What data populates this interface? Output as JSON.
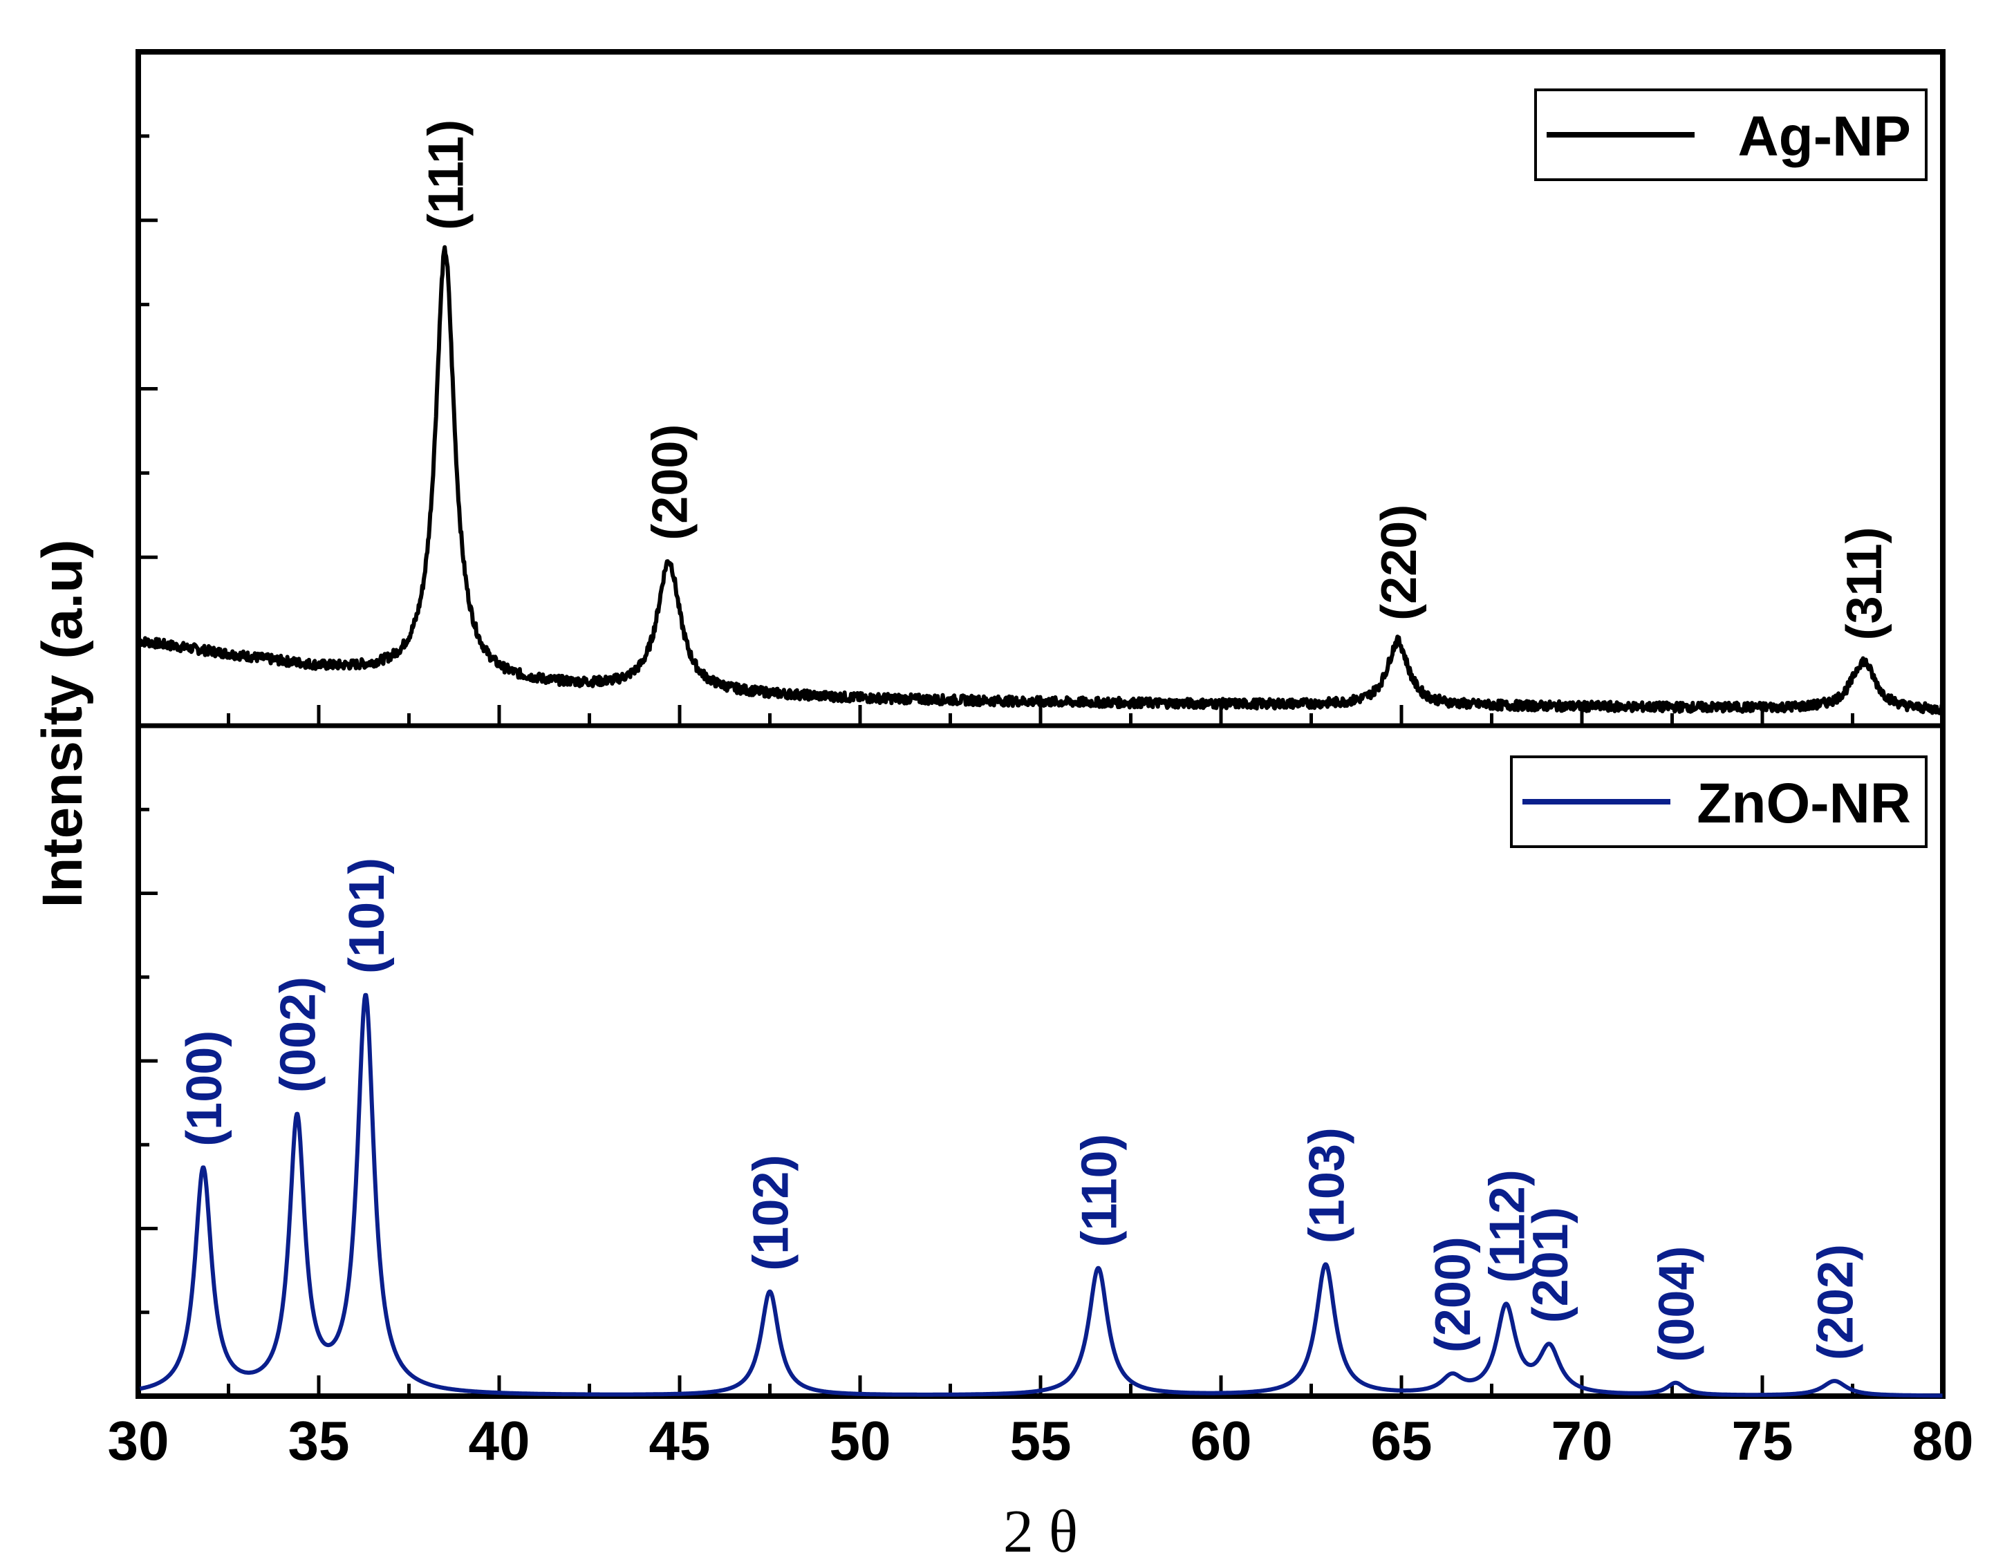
{
  "chart_data": {
    "type": "line",
    "ylabel": "Intensity (a.u)",
    "xlabel": "2 θ",
    "xlim": [
      30,
      80
    ],
    "xticks": [
      30,
      35,
      40,
      45,
      50,
      55,
      60,
      65,
      70,
      75,
      80
    ],
    "grid": false,
    "panels": [
      {
        "name": "top",
        "ylim": [
          0,
          1.0
        ],
        "legend": {
          "label": "Ag-NP",
          "color": "#000000",
          "position": "top-right"
        },
        "series": [
          {
            "name": "Ag-NP",
            "color": "#000000",
            "baseline": [
              [
                30,
                0.125
              ],
              [
                35,
                0.085
              ],
              [
                40,
                0.062
              ],
              [
                45,
                0.05
              ],
              [
                50,
                0.04
              ],
              [
                55,
                0.035
              ],
              [
                60,
                0.032
              ],
              [
                65,
                0.03
              ],
              [
                70,
                0.028
              ],
              [
                75,
                0.026
              ],
              [
                80,
                0.022
              ]
            ],
            "peaks": [
              {
                "x": 38.5,
                "height": 0.635,
                "width": 0.32,
                "label": "(111)"
              },
              {
                "x": 44.7,
                "height": 0.192,
                "width": 0.38,
                "label": "(200)"
              },
              {
                "x": 64.9,
                "height": 0.095,
                "width": 0.35,
                "label": "(220)"
              },
              {
                "x": 77.8,
                "height": 0.072,
                "width": 0.4,
                "label": "(311)"
              }
            ]
          }
        ]
      },
      {
        "name": "bottom",
        "ylim": [
          0,
          1.0
        ],
        "legend": {
          "label": "ZnO-NR",
          "color": "#0a1f8c",
          "position": "top-right"
        },
        "series": [
          {
            "name": "ZnO-NR",
            "color": "#0a1f8c",
            "baseline": [
              [
                30,
                0.0
              ],
              [
                80,
                0.0
              ]
            ],
            "peaks": [
              {
                "x": 31.8,
                "height": 0.335,
                "width": 0.28,
                "label": "(100)"
              },
              {
                "x": 34.4,
                "height": 0.405,
                "width": 0.26,
                "label": "(002)"
              },
              {
                "x": 36.3,
                "height": 0.59,
                "width": 0.28,
                "label": "(101)"
              },
              {
                "x": 47.5,
                "height": 0.155,
                "width": 0.3,
                "label": "(102)"
              },
              {
                "x": 56.6,
                "height": 0.19,
                "width": 0.32,
                "label": "(110)"
              },
              {
                "x": 62.9,
                "height": 0.195,
                "width": 0.32,
                "label": "(103)"
              },
              {
                "x": 66.4,
                "height": 0.025,
                "width": 0.35,
                "label": "(200)"
              },
              {
                "x": 67.9,
                "height": 0.13,
                "width": 0.32,
                "label": "(112)"
              },
              {
                "x": 69.1,
                "height": 0.068,
                "width": 0.35,
                "label": "(201)"
              },
              {
                "x": 72.6,
                "height": 0.018,
                "width": 0.3,
                "label": "(004)"
              },
              {
                "x": 77.0,
                "height": 0.022,
                "width": 0.4,
                "label": "(202)"
              }
            ]
          }
        ]
      }
    ]
  }
}
